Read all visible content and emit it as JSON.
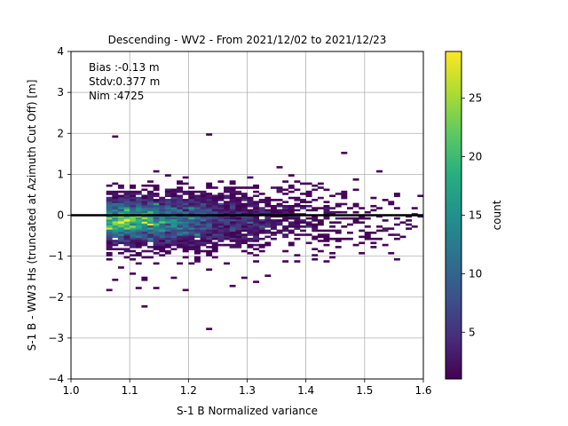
{
  "chart_data": {
    "type": "heatmap",
    "title": "Descending - WV2 - From 2021/12/02 to 2021/12/23",
    "xlabel": "S-1 B Normalized variance",
    "ylabel": "S-1 B - WW3 Hs (truncated at Azimuth Cut Off) [m]",
    "xlim": [
      1.0,
      1.6
    ],
    "ylim": [
      -4,
      4
    ],
    "x_ticks": [
      "1.0",
      "1.1",
      "1.2",
      "1.3",
      "1.4",
      "1.5",
      "1.6"
    ],
    "y_ticks": [
      "−4",
      "−3",
      "−2",
      "−1",
      "0",
      "1",
      "2",
      "3",
      "4"
    ],
    "grid": true,
    "reference_line": {
      "y": 0,
      "color": "#000000"
    },
    "stats": [
      "Bias :-0.13 m",
      "Stdv:0.377 m",
      "Nim :4725"
    ],
    "colorbar": {
      "label": "count",
      "colormap": "viridis",
      "range": [
        1,
        29
      ],
      "ticks": [
        "5",
        "10",
        "15",
        "20",
        "25"
      ]
    },
    "density": {
      "bin_x": 0.01,
      "bin_y": 0.05,
      "total_count": 4725,
      "peak_count": 29,
      "peak_at": [
        1.14,
        -0.2
      ],
      "bias": -0.13,
      "stdv": 0.377
    }
  }
}
